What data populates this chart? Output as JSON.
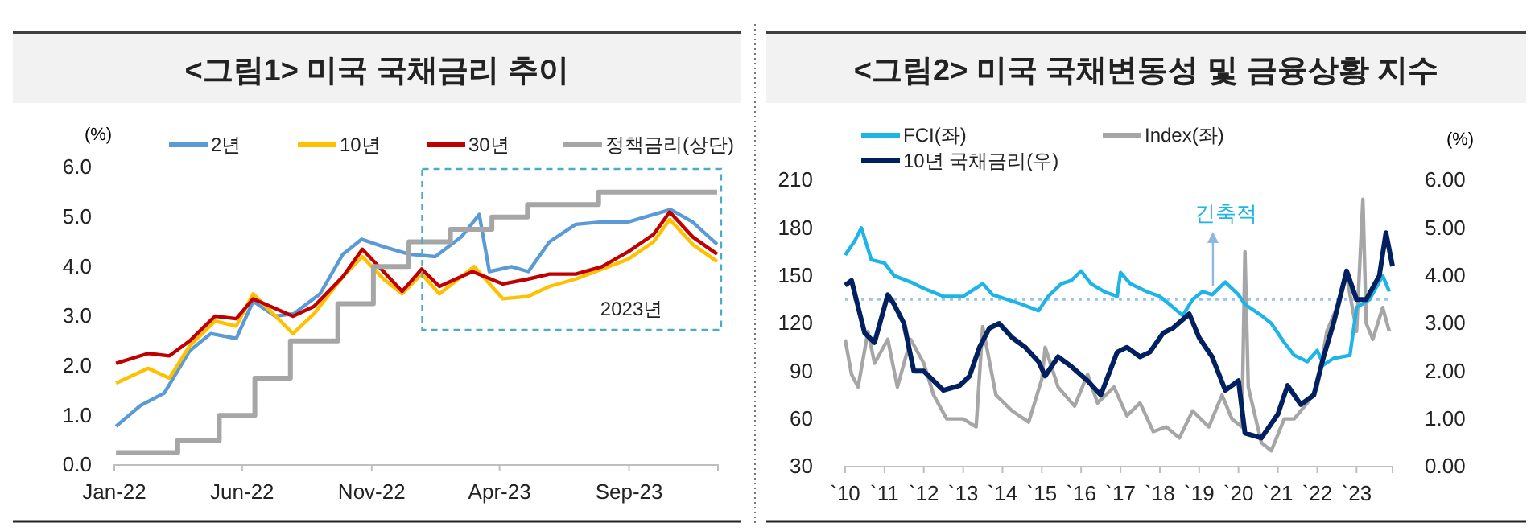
{
  "chart_data": [
    {
      "type": "line",
      "title": "<그림1> 미국 국채금리 추이",
      "ylabel": "(%)",
      "legend": "top",
      "annotations": [
        "2023년"
      ],
      "xlim": [
        "2022-01-01",
        "2023-12-15"
      ],
      "xticks": [
        {
          "value": "2022-01-01",
          "label": "Jan-22"
        },
        {
          "value": "2022-06-01",
          "label": "Jun-22"
        },
        {
          "value": "2022-11-01",
          "label": "Nov-22"
        },
        {
          "value": "2023-04-01",
          "label": "Apr-23"
        },
        {
          "value": "2023-09-01",
          "label": "Sep-23"
        }
      ],
      "ylim": [
        0,
        6
      ],
      "yticks": [
        {
          "value": 0,
          "label": "0.0"
        },
        {
          "value": 1,
          "label": "1.0"
        },
        {
          "value": 2,
          "label": "2.0"
        },
        {
          "value": 3,
          "label": "3.0"
        },
        {
          "value": 4,
          "label": "4.0"
        },
        {
          "value": 5,
          "label": "5.0"
        },
        {
          "value": 6,
          "label": "6.0"
        }
      ],
      "series": [
        {
          "name": "2년",
          "color": "#5b9bd5",
          "x": [
            "2022-01-03",
            "2022-02-01",
            "2022-03-01",
            "2022-03-31",
            "2022-04-25",
            "2022-05-25",
            "2022-06-14",
            "2022-07-10",
            "2022-08-01",
            "2022-09-01",
            "2022-09-28",
            "2022-10-20",
            "2022-11-15",
            "2022-12-15",
            "2023-01-15",
            "2023-02-15",
            "2023-03-08",
            "2023-03-20",
            "2023-04-15",
            "2023-05-05",
            "2023-05-30",
            "2023-06-30",
            "2023-07-31",
            "2023-08-31",
            "2023-09-30",
            "2023-10-20",
            "2023-11-15",
            "2023-12-01",
            "2023-12-14"
          ],
          "values": [
            0.78,
            1.2,
            1.45,
            2.3,
            2.65,
            2.55,
            3.3,
            3.0,
            3.05,
            3.45,
            4.25,
            4.55,
            4.4,
            4.25,
            4.2,
            4.6,
            5.05,
            3.9,
            4.0,
            3.9,
            4.5,
            4.85,
            4.9,
            4.9,
            5.05,
            5.15,
            4.9,
            4.65,
            4.45
          ]
        },
        {
          "name": "10년",
          "color": "#ffc000",
          "x": [
            "2022-01-03",
            "2022-02-10",
            "2022-03-07",
            "2022-03-31",
            "2022-04-30",
            "2022-05-25",
            "2022-06-14",
            "2022-07-31",
            "2022-08-25",
            "2022-09-28",
            "2022-10-21",
            "2022-11-15",
            "2022-12-07",
            "2022-12-30",
            "2023-01-20",
            "2023-02-15",
            "2023-03-02",
            "2023-04-05",
            "2023-05-05",
            "2023-05-30",
            "2023-06-30",
            "2023-07-31",
            "2023-08-31",
            "2023-09-30",
            "2023-10-19",
            "2023-11-15",
            "2023-12-14"
          ],
          "values": [
            1.65,
            1.95,
            1.75,
            2.4,
            2.9,
            2.8,
            3.45,
            2.65,
            3.05,
            3.8,
            4.2,
            3.75,
            3.45,
            3.85,
            3.45,
            3.8,
            4.0,
            3.35,
            3.4,
            3.6,
            3.75,
            3.95,
            4.15,
            4.5,
            4.95,
            4.45,
            4.1
          ]
        },
        {
          "name": "30년",
          "color": "#c00000",
          "x": [
            "2022-01-03",
            "2022-02-10",
            "2022-03-07",
            "2022-03-31",
            "2022-04-30",
            "2022-05-25",
            "2022-06-14",
            "2022-07-31",
            "2022-08-25",
            "2022-09-28",
            "2022-10-21",
            "2022-11-15",
            "2022-12-07",
            "2022-12-30",
            "2023-01-20",
            "2023-02-28",
            "2023-04-05",
            "2023-05-05",
            "2023-05-30",
            "2023-06-30",
            "2023-07-31",
            "2023-08-31",
            "2023-09-30",
            "2023-10-19",
            "2023-11-15",
            "2023-12-14"
          ],
          "values": [
            2.05,
            2.25,
            2.2,
            2.5,
            3.0,
            2.95,
            3.35,
            3.0,
            3.2,
            3.8,
            4.35,
            3.9,
            3.5,
            3.95,
            3.6,
            3.9,
            3.65,
            3.75,
            3.85,
            3.85,
            4.0,
            4.3,
            4.65,
            5.1,
            4.6,
            4.25
          ]
        },
        {
          "name": "정책금리(상단)",
          "type": "step",
          "color": "#a6a6a6",
          "x": [
            "2022-01-03",
            "2022-03-17",
            "2022-05-05",
            "2022-06-16",
            "2022-07-28",
            "2022-09-22",
            "2022-11-03",
            "2022-12-15",
            "2023-02-02",
            "2023-03-23",
            "2023-05-04",
            "2023-07-27",
            "2023-12-14"
          ],
          "values": [
            0.25,
            0.5,
            1.0,
            1.75,
            2.5,
            3.25,
            4.0,
            4.5,
            4.75,
            5.0,
            5.25,
            5.5,
            5.5
          ]
        }
      ]
    },
    {
      "type": "line",
      "title": "<그림2> 미국 국채변동성 및 금융상황 지수",
      "y2label": "(%)",
      "legend": "top left",
      "annotations": [
        "긴축적"
      ],
      "xlim": [
        "2010-01-01",
        "2023-12-01"
      ],
      "xticks": [
        {
          "value": "2010-01-01",
          "label": "`10"
        },
        {
          "value": "2011-01-01",
          "label": "`11"
        },
        {
          "value": "2012-01-01",
          "label": "`12"
        },
        {
          "value": "2013-01-01",
          "label": "`13"
        },
        {
          "value": "2014-01-01",
          "label": "`14"
        },
        {
          "value": "2015-01-01",
          "label": "`15"
        },
        {
          "value": "2016-01-01",
          "label": "`16"
        },
        {
          "value": "2017-01-01",
          "label": "`17"
        },
        {
          "value": "2018-01-01",
          "label": "`18"
        },
        {
          "value": "2019-01-01",
          "label": "`19"
        },
        {
          "value": "2020-01-01",
          "label": "`20"
        },
        {
          "value": "2021-01-01",
          "label": "`21"
        },
        {
          "value": "2022-01-01",
          "label": "`22"
        },
        {
          "value": "2023-01-01",
          "label": "`23"
        }
      ],
      "ylim": [
        30,
        210
      ],
      "yticks": [
        30,
        60,
        90,
        120,
        150,
        180,
        210
      ],
      "y2lim": [
        0,
        6
      ],
      "y2ticks": [
        {
          "value": 0,
          "label": "0.00"
        },
        {
          "value": 1,
          "label": "1.00"
        },
        {
          "value": 2,
          "label": "2.00"
        },
        {
          "value": 3,
          "label": "3.00"
        },
        {
          "value": 4,
          "label": "4.00"
        },
        {
          "value": 5,
          "label": "5.00"
        },
        {
          "value": 6,
          "label": "6.00"
        }
      ],
      "ref_lines": [
        {
          "axis": "y",
          "value": 135,
          "color": "#9dc3e6",
          "line_style": "dotted"
        }
      ],
      "series": [
        {
          "name": "FCI(좌)",
          "color": "#1fb4e8",
          "x": [
            "2010-01",
            "2010-04",
            "2010-06",
            "2010-09",
            "2011-01",
            "2011-04",
            "2011-09",
            "2012-01",
            "2012-07",
            "2013-01",
            "2013-07",
            "2013-10",
            "2014-07",
            "2014-12",
            "2015-03",
            "2015-07",
            "2015-10",
            "2016-01",
            "2016-04",
            "2016-08",
            "2016-12",
            "2017-01",
            "2017-04",
            "2017-09",
            "2018-01",
            "2018-04",
            "2018-08",
            "2018-11",
            "2019-02",
            "2019-05",
            "2019-09",
            "2020-01",
            "2020-03",
            "2020-08",
            "2020-11",
            "2021-03",
            "2021-06",
            "2021-10",
            "2022-01",
            "2022-03",
            "2022-06",
            "2022-11",
            "2023-01",
            "2023-05",
            "2023-09",
            "2023-11"
          ],
          "values": [
            163,
            172,
            180,
            160,
            158,
            150,
            146,
            142,
            137,
            137,
            145,
            138,
            132,
            128,
            137,
            145,
            147,
            153,
            145,
            140,
            137,
            152,
            145,
            140,
            137,
            132,
            125,
            135,
            140,
            138,
            146,
            138,
            132,
            125,
            120,
            108,
            100,
            96,
            103,
            94,
            98,
            100,
            130,
            135,
            150,
            140
          ]
        },
        {
          "name": "Index(좌)",
          "color": "#a6a6a6",
          "x": [
            "2010-01",
            "2010-03",
            "2010-05",
            "2010-08",
            "2010-10",
            "2011-02",
            "2011-05",
            "2011-09",
            "2012-01",
            "2012-04",
            "2012-08",
            "2013-01",
            "2013-05",
            "2013-07",
            "2013-11",
            "2014-04",
            "2014-09",
            "2015-01",
            "2015-02",
            "2015-06",
            "2015-11",
            "2016-03",
            "2016-06",
            "2016-11",
            "2017-03",
            "2017-07",
            "2017-11",
            "2018-03",
            "2018-07",
            "2018-11",
            "2019-04",
            "2019-08",
            "2019-11",
            "2020-02",
            "2020-03",
            "2020-04",
            "2020-08",
            "2020-11",
            "2021-03",
            "2021-06",
            "2021-10",
            "2022-01",
            "2022-04",
            "2022-07",
            "2022-10",
            "2023-01",
            "2023-03",
            "2023-04",
            "2023-06",
            "2023-09",
            "2023-11"
          ],
          "values": [
            110,
            88,
            80,
            115,
            95,
            110,
            80,
            110,
            95,
            75,
            60,
            60,
            55,
            118,
            75,
            65,
            58,
            85,
            105,
            80,
            68,
            88,
            70,
            80,
            62,
            70,
            52,
            55,
            48,
            65,
            55,
            75,
            60,
            55,
            165,
            80,
            45,
            40,
            60,
            60,
            70,
            80,
            115,
            130,
            150,
            115,
            198,
            120,
            110,
            130,
            115
          ]
        },
        {
          "name": "10년 국채금리(우)",
          "axis": "y2",
          "color": "#002060",
          "x": [
            "2010-01",
            "2010-03",
            "2010-07",
            "2010-10",
            "2011-02",
            "2011-04",
            "2011-07",
            "2011-10",
            "2012-01",
            "2012-07",
            "2012-12",
            "2013-03",
            "2013-06",
            "2013-09",
            "2013-12",
            "2014-04",
            "2014-08",
            "2014-12",
            "2015-02",
            "2015-06",
            "2015-10",
            "2016-03",
            "2016-07",
            "2016-12",
            "2017-03",
            "2017-07",
            "2017-10",
            "2018-02",
            "2018-05",
            "2018-10",
            "2019-01",
            "2019-05",
            "2019-09",
            "2020-01",
            "2020-03",
            "2020-08",
            "2021-01",
            "2021-04",
            "2021-08",
            "2021-12",
            "2022-03",
            "2022-06",
            "2022-10",
            "2023-01",
            "2023-04",
            "2023-08",
            "2023-10",
            "2023-12"
          ],
          "values": [
            3.8,
            3.9,
            2.8,
            2.6,
            3.6,
            3.4,
            3.0,
            2.0,
            2.0,
            1.6,
            1.7,
            1.9,
            2.5,
            2.9,
            3.0,
            2.7,
            2.5,
            2.2,
            1.9,
            2.3,
            2.1,
            1.8,
            1.5,
            2.4,
            2.5,
            2.3,
            2.4,
            2.8,
            2.9,
            3.2,
            2.7,
            2.3,
            1.6,
            1.8,
            0.7,
            0.6,
            1.1,
            1.7,
            1.3,
            1.5,
            2.3,
            3.0,
            4.1,
            3.5,
            3.5,
            4.0,
            4.9,
            4.2
          ]
        }
      ]
    }
  ]
}
